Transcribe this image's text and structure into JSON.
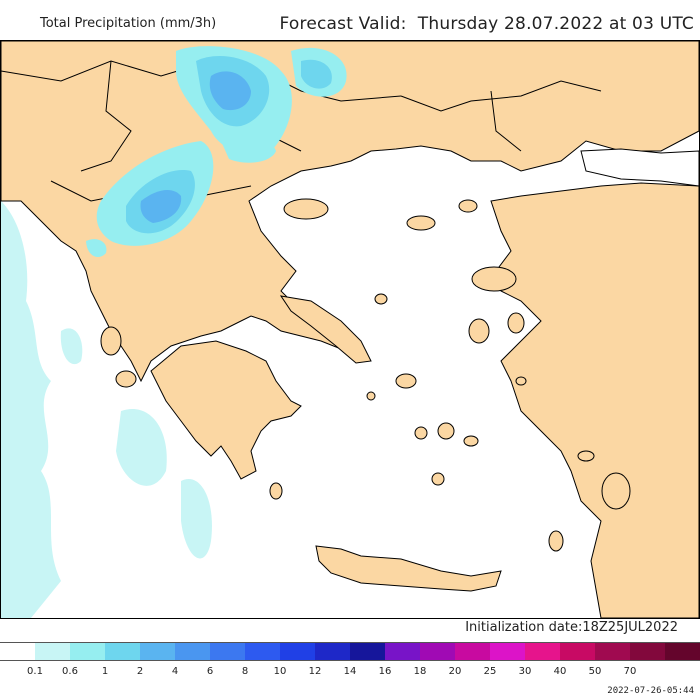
{
  "header": {
    "title": "Total Precipitation (mm/3h)",
    "valid_label": "Forecast Valid:",
    "valid_time": "Thursday 28.07.2022 at 03 UTC"
  },
  "map": {
    "land_color": "#fbd7a3",
    "sea_color": "#ffffff",
    "border_color": "#000000"
  },
  "footer": {
    "init_label": "Initialization date:",
    "init_value": "18Z25JUL2022",
    "timestamp": "2022-07-26-05:44"
  },
  "legend": {
    "colors": [
      "#ffffff",
      "#c8f5f5",
      "#96eef0",
      "#6ed6ee",
      "#5ab4f0",
      "#4a96f0",
      "#3c78f0",
      "#2d5af0",
      "#2040e6",
      "#1e28c8",
      "#16169b",
      "#7814c8",
      "#a00ab4",
      "#c80aa0",
      "#dc14c8",
      "#e6148c",
      "#c80a64",
      "#a00a50",
      "#82083c",
      "#64052c"
    ],
    "labels": [
      "0.1",
      "0.6",
      "1",
      "2",
      "4",
      "6",
      "8",
      "10",
      "12",
      "14",
      "16",
      "18",
      "20",
      "25",
      "30",
      "40",
      "50",
      "70"
    ]
  }
}
